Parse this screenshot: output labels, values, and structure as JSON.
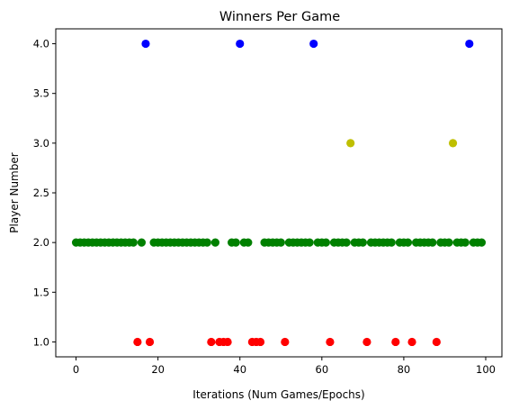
{
  "chart_data": {
    "type": "scatter",
    "title": "Winners Per Game",
    "xlabel": "Iterations (Num Games/Epochs)",
    "ylabel": "Player Number",
    "xlim": [
      -4.95,
      103.95
    ],
    "ylim": [
      0.85,
      4.15
    ],
    "xticks": [
      0,
      20,
      40,
      60,
      80,
      100
    ],
    "yticks": [
      1.0,
      1.5,
      2.0,
      2.5,
      3.0,
      3.5,
      4.0
    ],
    "xtick_labels": [
      "0",
      "20",
      "40",
      "60",
      "80",
      "100"
    ],
    "ytick_labels": [
      "1.0",
      "1.5",
      "2.0",
      "2.5",
      "3.0",
      "3.5",
      "4.0"
    ],
    "grid": false,
    "colors": {
      "1": "#ff0000",
      "2": "#008000",
      "3": "#bfbf00",
      "4": "#0000ff"
    },
    "x": [
      0,
      1,
      2,
      3,
      4,
      5,
      6,
      7,
      8,
      9,
      10,
      11,
      12,
      13,
      14,
      15,
      16,
      17,
      18,
      19,
      20,
      21,
      22,
      23,
      24,
      25,
      26,
      27,
      28,
      29,
      30,
      31,
      32,
      33,
      34,
      35,
      36,
      37,
      38,
      39,
      40,
      41,
      42,
      43,
      44,
      45,
      46,
      47,
      48,
      49,
      50,
      51,
      52,
      53,
      54,
      55,
      56,
      57,
      58,
      59,
      60,
      61,
      62,
      63,
      64,
      65,
      66,
      67,
      68,
      69,
      70,
      71,
      72,
      73,
      74,
      75,
      76,
      77,
      78,
      79,
      80,
      81,
      82,
      83,
      84,
      85,
      86,
      87,
      88,
      89,
      90,
      91,
      92,
      93,
      94,
      95,
      96,
      97,
      98,
      99
    ],
    "y": [
      2,
      2,
      2,
      2,
      2,
      2,
      2,
      2,
      2,
      2,
      2,
      2,
      2,
      2,
      2,
      1,
      2,
      4,
      1,
      2,
      2,
      2,
      2,
      2,
      2,
      2,
      2,
      2,
      2,
      2,
      2,
      2,
      2,
      1,
      2,
      1,
      1,
      1,
      2,
      2,
      4,
      2,
      2,
      1,
      1,
      1,
      2,
      2,
      2,
      2,
      2,
      1,
      2,
      2,
      2,
      2,
      2,
      2,
      4,
      2,
      2,
      2,
      1,
      2,
      2,
      2,
      2,
      3,
      2,
      2,
      2,
      1,
      2,
      2,
      2,
      2,
      2,
      2,
      1,
      2,
      2,
      2,
      1,
      2,
      2,
      2,
      2,
      2,
      1,
      2,
      2,
      2,
      3,
      2,
      2,
      2,
      4,
      2,
      2,
      2
    ]
  }
}
